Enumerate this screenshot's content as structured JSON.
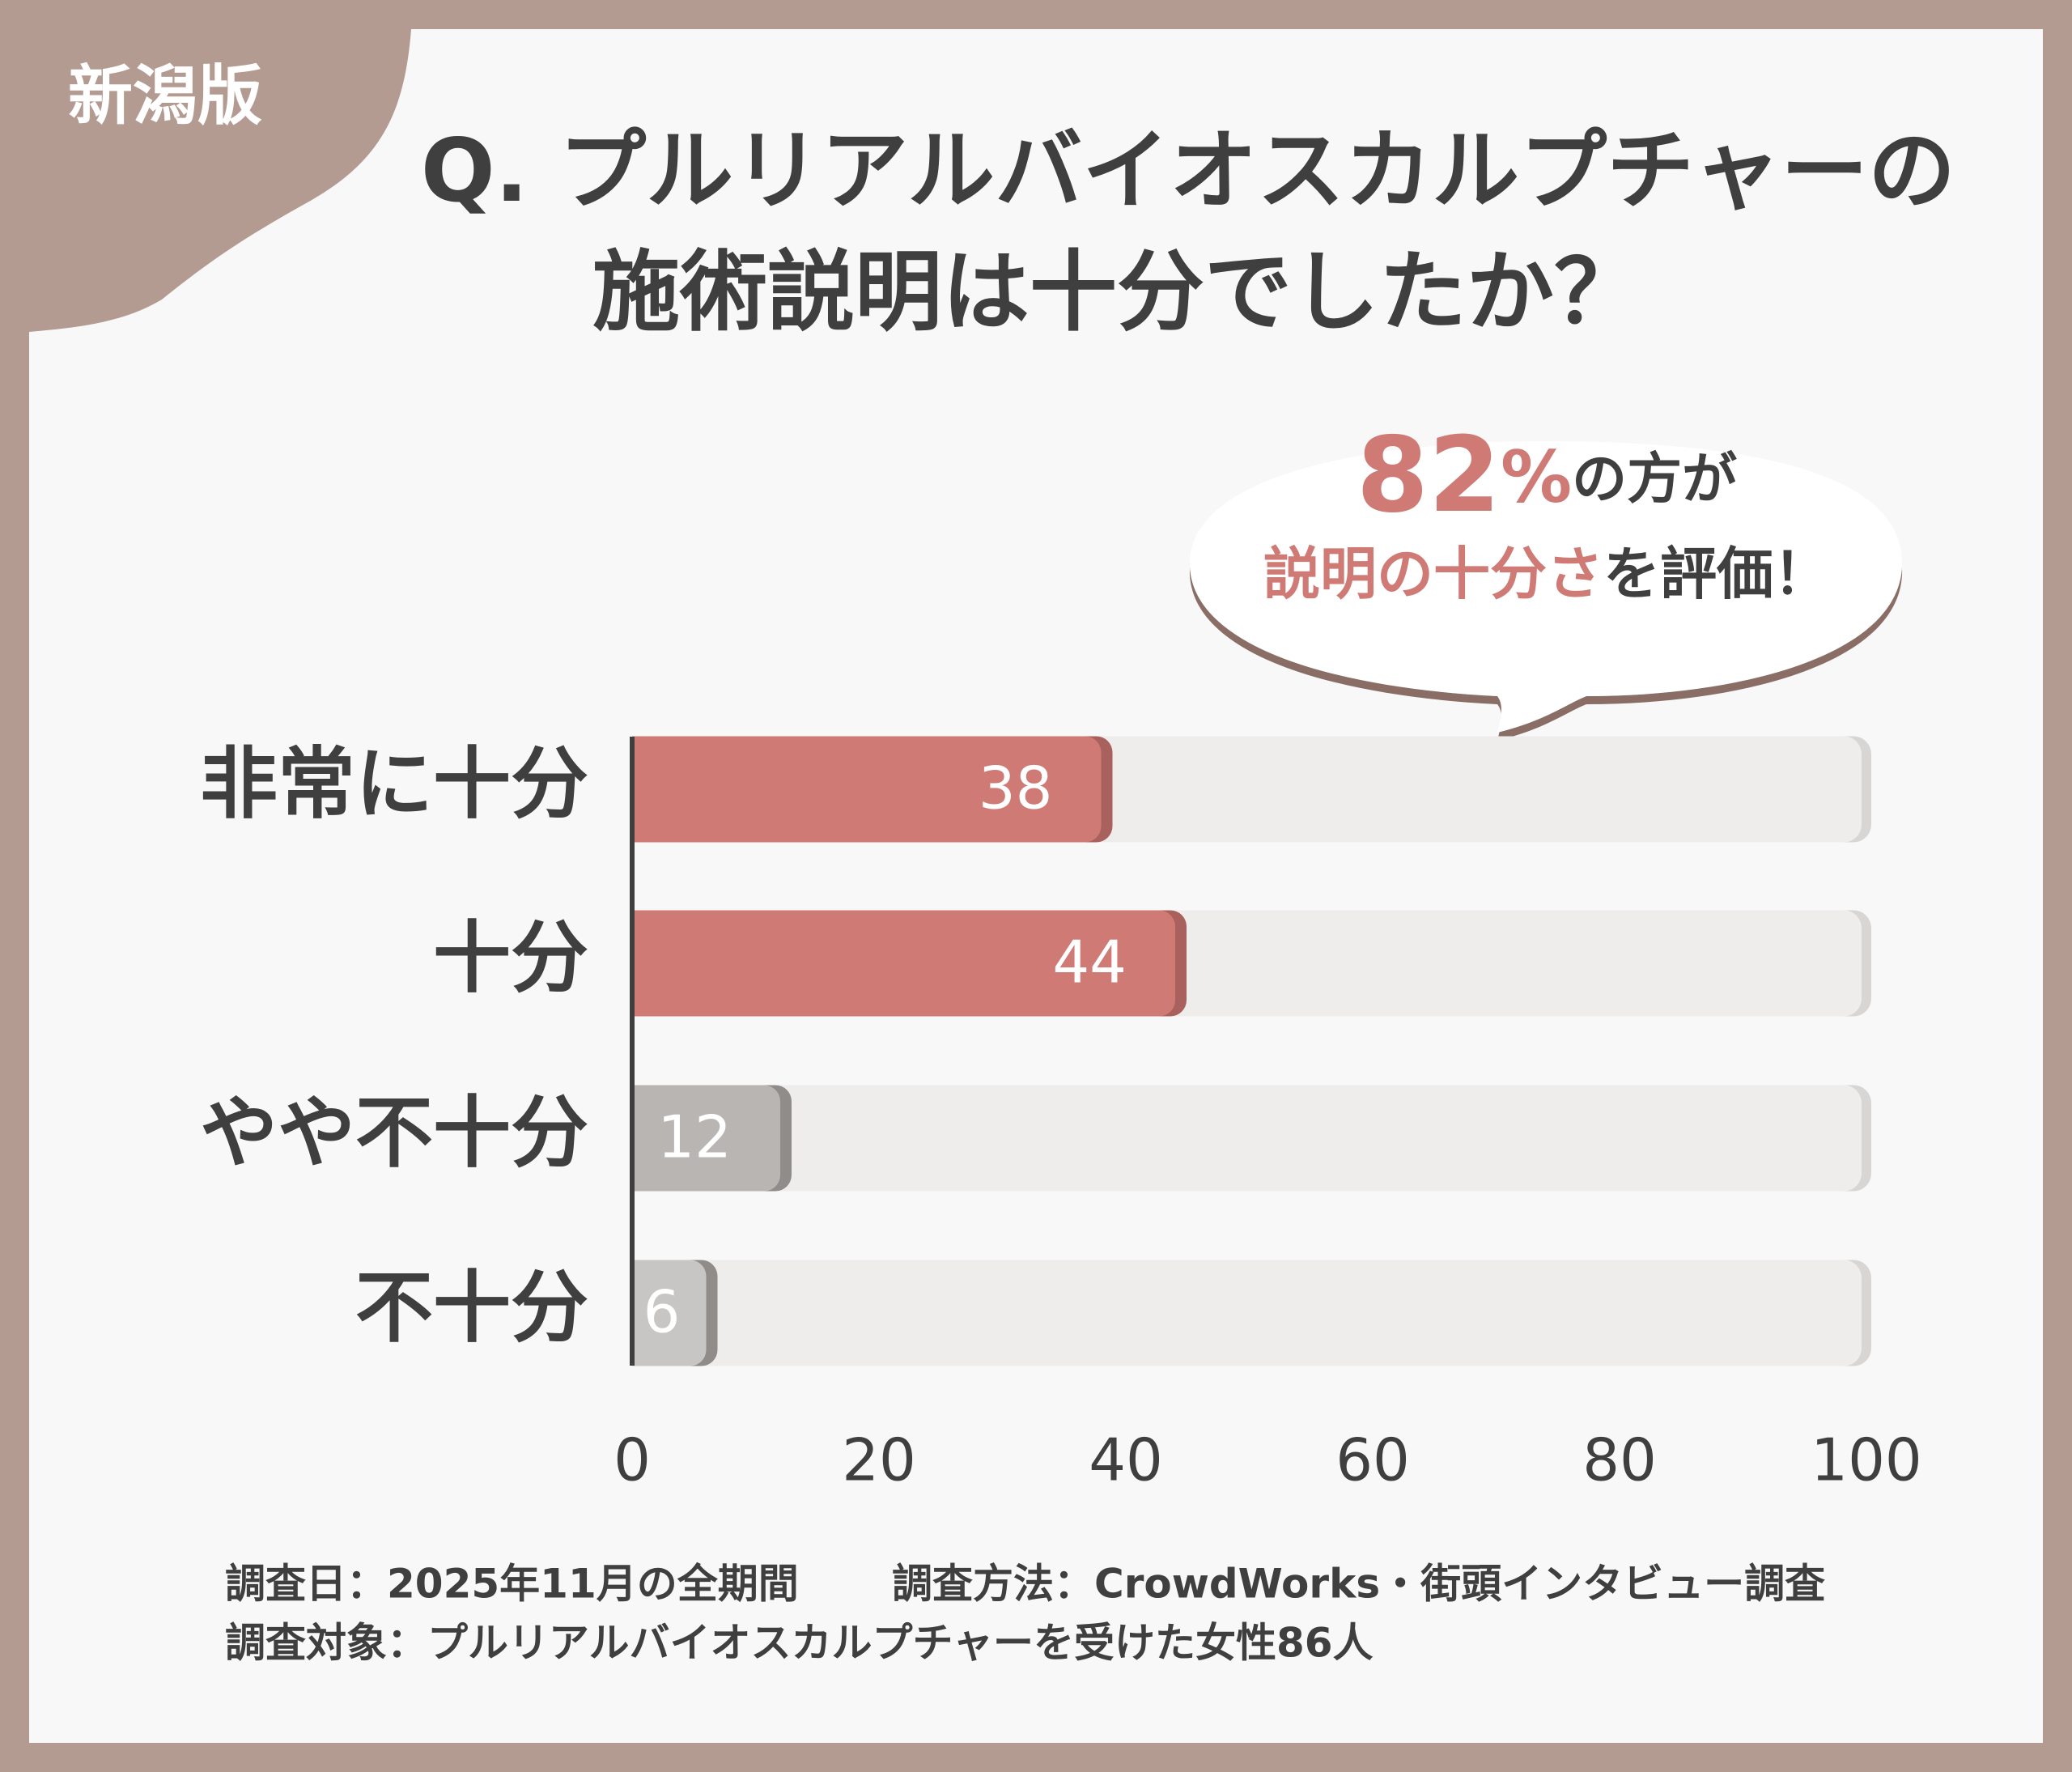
{
  "chart_data": {
    "type": "hbar",
    "badge": "新潟版",
    "title": [
      "Q. プルリアルバイオスカルプチャーの",
      "施術説明は十分でしたか？"
    ],
    "callout": {
      "line1": [
        {
          "text": "82",
          "accent": true
        },
        {
          "text": "%",
          "accent": true
        },
        {
          "text": "の方が",
          "accent": false
        }
      ],
      "line2": [
        {
          "text": "説明の十分さ",
          "accent": true
        },
        {
          "text": "を評価！",
          "accent": false
        }
      ]
    },
    "categories": [
      "非常に十分",
      "十分",
      "やや不十分",
      "不十分"
    ],
    "values": [
      38,
      44,
      12,
      6
    ],
    "colors": [
      "#d07a76",
      "#d07a76",
      "#b8b5b3",
      "#c8c6c5"
    ],
    "track_color": "#efedec",
    "xlim": [
      0,
      100
    ],
    "xticks": [
      0,
      20,
      40,
      60,
      80,
      100
    ],
    "notes": [
      [
        "調査日：2025年11月の全期間",
        "調査方法：CrowdWorks・街頭インタビュー調査"
      ],
      [
        "調査対象：プルリアルバイオスカルプチャーを受けた女性86人"
      ]
    ]
  }
}
